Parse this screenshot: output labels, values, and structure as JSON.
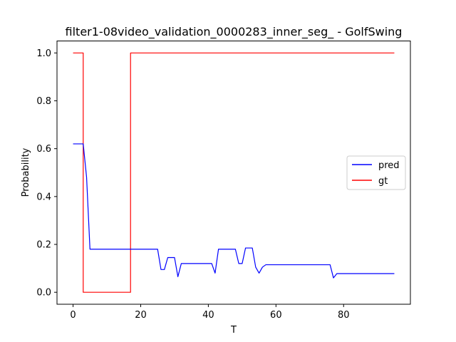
{
  "chart_data": {
    "type": "line",
    "title": "filter1-08video_validation_0000283_inner_seg_ - GolfSwing",
    "xlabel": "T",
    "ylabel": "Probability",
    "xlim": [
      -4.75,
      99.75
    ],
    "ylim": [
      -0.05,
      1.05
    ],
    "xticks": [
      0,
      20,
      40,
      60,
      80
    ],
    "xtick_labels": [
      "0",
      "20",
      "40",
      "60",
      "80"
    ],
    "yticks": [
      0.0,
      0.2,
      0.4,
      0.6,
      0.8,
      1.0
    ],
    "ytick_labels": [
      "0.0",
      "0.2",
      "0.4",
      "0.6",
      "0.8",
      "1.0"
    ],
    "grid": false,
    "legend_position": "center-right",
    "series": [
      {
        "name": "pred",
        "color": "#0000ff",
        "step": false,
        "x": [
          0,
          1,
          2,
          3,
          4,
          5,
          6,
          7,
          8,
          9,
          10,
          11,
          12,
          13,
          14,
          15,
          16,
          17,
          18,
          19,
          20,
          21,
          22,
          23,
          24,
          25,
          26,
          27,
          28,
          29,
          30,
          31,
          32,
          33,
          34,
          35,
          36,
          37,
          38,
          39,
          40,
          41,
          42,
          43,
          44,
          45,
          46,
          47,
          48,
          49,
          50,
          51,
          52,
          53,
          54,
          55,
          56,
          57,
          58,
          59,
          60,
          61,
          62,
          63,
          64,
          65,
          66,
          67,
          68,
          69,
          70,
          71,
          72,
          73,
          74,
          75,
          76,
          77,
          78,
          79,
          80,
          81,
          82,
          83,
          84,
          85,
          86,
          87,
          88,
          89,
          90,
          91,
          92,
          93,
          94,
          95
        ],
        "y": [
          0.62,
          0.62,
          0.62,
          0.62,
          0.48,
          0.18,
          0.18,
          0.18,
          0.18,
          0.18,
          0.18,
          0.18,
          0.18,
          0.18,
          0.18,
          0.18,
          0.18,
          0.18,
          0.18,
          0.18,
          0.18,
          0.18,
          0.18,
          0.18,
          0.18,
          0.18,
          0.095,
          0.095,
          0.145,
          0.145,
          0.145,
          0.065,
          0.12,
          0.12,
          0.12,
          0.12,
          0.12,
          0.12,
          0.12,
          0.12,
          0.12,
          0.12,
          0.08,
          0.18,
          0.18,
          0.18,
          0.18,
          0.18,
          0.18,
          0.12,
          0.12,
          0.185,
          0.185,
          0.185,
          0.105,
          0.08,
          0.105,
          0.115,
          0.115,
          0.115,
          0.115,
          0.115,
          0.115,
          0.115,
          0.115,
          0.115,
          0.115,
          0.115,
          0.115,
          0.115,
          0.115,
          0.115,
          0.115,
          0.115,
          0.115,
          0.115,
          0.115,
          0.06,
          0.078,
          0.078,
          0.078,
          0.078,
          0.078,
          0.078,
          0.078,
          0.078,
          0.078,
          0.078,
          0.078,
          0.078,
          0.078,
          0.078,
          0.078,
          0.078,
          0.078,
          0.078
        ]
      },
      {
        "name": "gt",
        "color": "#ff0000",
        "step": true,
        "x": [
          0,
          3,
          3,
          17,
          17,
          95
        ],
        "y": [
          1.0,
          1.0,
          0.0,
          0.0,
          1.0,
          1.0
        ]
      }
    ]
  }
}
